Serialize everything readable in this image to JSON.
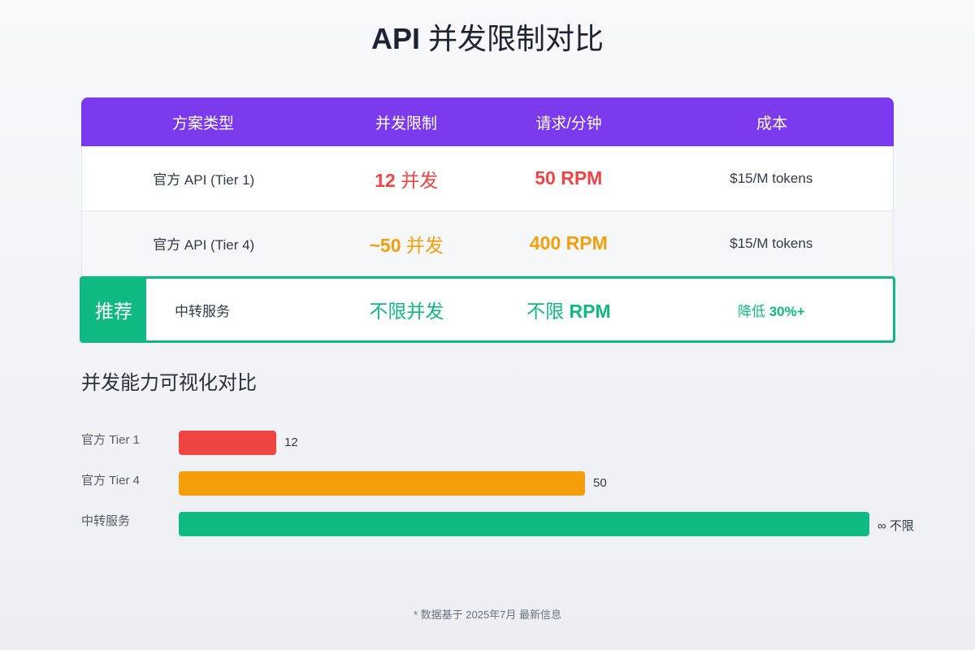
{
  "page": {
    "title_latin": "API",
    "title_cn": "并发限制对比"
  },
  "table": {
    "headers": [
      "方案类型",
      "并发限制",
      "请求/分钟",
      "成本"
    ],
    "header_color": "#7c3aed",
    "rows": [
      {
        "plan": "官方 API (Tier 1)",
        "concurrency_num": "12",
        "concurrency_unit": "并发",
        "rpm": "50 RPM",
        "cost": "$15/M tokens",
        "color": "#ef4444"
      },
      {
        "plan": "官方 API (Tier 4)",
        "concurrency_num": "~50",
        "concurrency_unit": "并发",
        "rpm": "400 RPM",
        "cost": "$15/M tokens",
        "color": "#f59e0b"
      },
      {
        "badge": "推荐",
        "plan": "中转服务",
        "concurrency": "不限并发",
        "rpm_prefix": "不限",
        "rpm_suffix": "RPM",
        "cost_prefix": "降低",
        "cost_value": "30%+",
        "color": "#10b981"
      }
    ]
  },
  "section_title": "并发能力可视化对比",
  "chart_data": {
    "type": "bar",
    "orientation": "horizontal",
    "categories": [
      "官方 Tier 1",
      "官方 Tier 4",
      "中转服务"
    ],
    "values": [
      12,
      50,
      null
    ],
    "value_labels": [
      "12",
      "50",
      "∞ 不限"
    ],
    "colors": [
      "#ef4444",
      "#f59e0b",
      "#10b981"
    ],
    "title": "",
    "xlabel": "",
    "ylabel": ""
  },
  "footnote": "* 数据基于 2025年7月 最新信息"
}
